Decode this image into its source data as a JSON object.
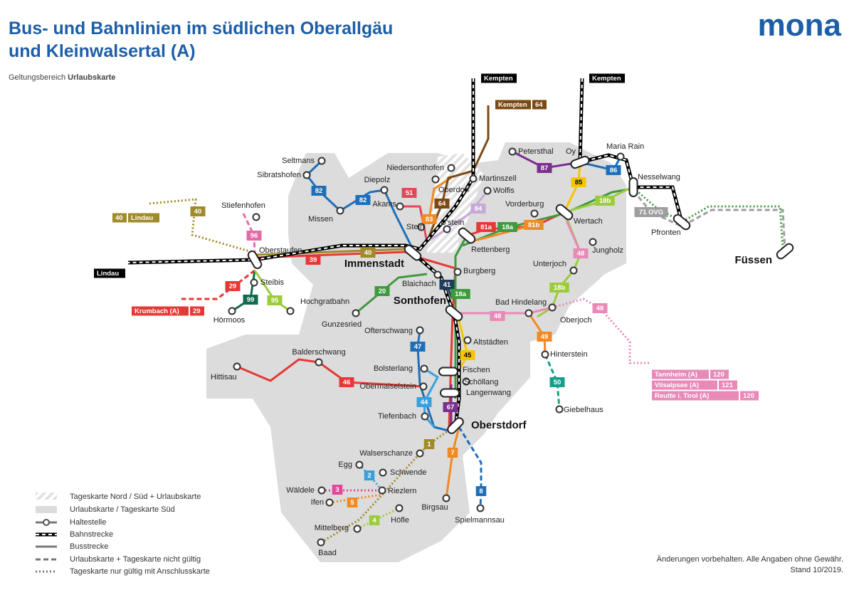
{
  "header": {
    "title_line1": "Bus- und Bahnlinien im südlichen Oberallgäu",
    "title_line2": "und Kleinwalsertal (A)",
    "subtitle": "Geltungsbereich",
    "subtitle_bold": "Urlaubskarte",
    "logo": "mona"
  },
  "stations": [
    "Seltmans",
    "Sibratshofen",
    "Missen",
    "Diepolz",
    "Niedersonthofen",
    "Martinszell",
    "Oberdorf",
    "Wolfis",
    "Akams",
    "Stein",
    "U'stein",
    "Immenstadt",
    "Petersthal",
    "Oy",
    "Maria Rain",
    "Nesselwang",
    "Vorderburg",
    "Wertach",
    "Rettenberg",
    "Jungholz",
    "Pfronten",
    "Füssen",
    "Stiefenhofen",
    "Oberstaufen",
    "Burgberg",
    "Blaichach",
    "Unterjoch",
    "Steibis",
    "Hochgratbahn",
    "Hörmoos",
    "Sonthofen",
    "Bad Hindelang",
    "Oberjoch",
    "Gunzesried",
    "Ofterschwang",
    "Altstädten",
    "Hinterstein",
    "Balderschwang",
    "Hittisau",
    "Bolsterlang",
    "Fischen",
    "Schöllang",
    "Obermaiselstein",
    "Langenwang",
    "Tiefenbach",
    "Giebelhaus",
    "Oberstdorf",
    "Walserschanze",
    "Egg",
    "Schwende",
    "Wäldele",
    "Riezlern",
    "Birgsau",
    "Spielmannsau",
    "Ifen",
    "Höfle",
    "Mittelberg",
    "Baad"
  ],
  "line_badges": [
    "82",
    "82",
    "96",
    "40",
    "39",
    "40",
    "29",
    "99",
    "95",
    "20",
    "51",
    "83",
    "64",
    "84",
    "87",
    "86",
    "85",
    "81a",
    "18a",
    "81b",
    "18b",
    "41",
    "18a",
    "48",
    "18b",
    "48",
    "48",
    "49",
    "45",
    "47",
    "46",
    "50",
    "44",
    "67",
    "1",
    "7",
    "2",
    "3",
    "5",
    "4",
    "8",
    "71 OVG"
  ],
  "destinations": [
    {
      "name": "Kempten"
    },
    {
      "name": "Kempten",
      "line": "64"
    },
    {
      "name": "Kempten"
    },
    {
      "name": "Lindau"
    },
    {
      "name": "Lindau",
      "line": "40"
    },
    {
      "name": "Krumbach (A)",
      "line": "29"
    },
    {
      "name": "Tannheim (A)",
      "line": "120"
    },
    {
      "name": "Vilsalpsee (A)",
      "line": "121"
    },
    {
      "name": "Reutte i. Tirol (A)",
      "line": "120"
    }
  ],
  "legend": [
    "Tageskarte Nord / Süd + Urlaubskarte",
    "Urlaubskarte / Tageskarte Süd",
    "Haltestelle",
    "Bahnstrecke",
    "Busstrecke",
    "Urlaubskarte + Tageskarte nicht gültig",
    "Tageskarte nur gültig mit Anschlusskarte"
  ],
  "footer": [
    "Änderungen vorbehalten. Alle Angaben ohne Gewähr.",
    "Stand 10/2019."
  ]
}
